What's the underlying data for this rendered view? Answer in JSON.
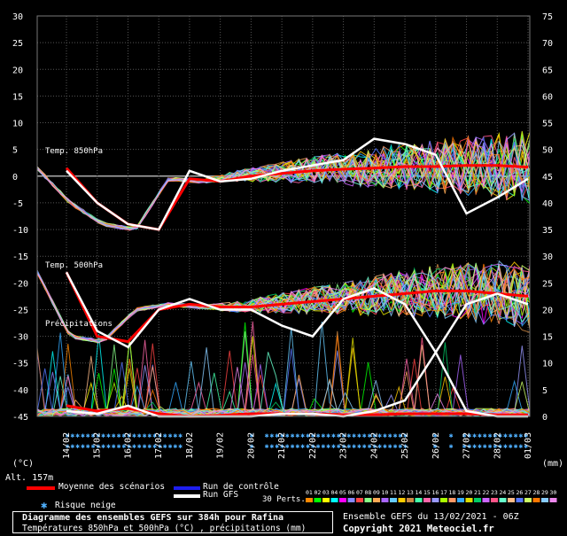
{
  "chart_data": {
    "type": "line",
    "left_axis": {
      "ticks": [
        30,
        25,
        20,
        15,
        10,
        5,
        0,
        -5,
        -10,
        -15,
        -20,
        -25,
        -30,
        -35,
        -40,
        -45
      ],
      "unit": "(°C)",
      "ylim": [
        -45,
        30
      ]
    },
    "right_axis": {
      "ticks": [
        75,
        70,
        65,
        60,
        55,
        50,
        45,
        40,
        35,
        30,
        25,
        20,
        15,
        10,
        5,
        0
      ],
      "unit": "(mm)",
      "ylim": [
        0,
        75
      ]
    },
    "altitude_label": "Alt. 157m",
    "x_ticks": [
      "14/02",
      "15/02",
      "16/02",
      "17/02",
      "18/02",
      "19/02",
      "20/02",
      "21/02",
      "22/02",
      "23/02",
      "24/02",
      "25/02",
      "26/02",
      "27/02",
      "28/02",
      "01/03"
    ],
    "grid": true,
    "panel_labels": {
      "t850": "Temp. 850hPa",
      "t500": "Temp. 500hPa",
      "precip": "Précipitations"
    },
    "series": [
      {
        "name": "Moyenne des scénarios",
        "color": "#ff0000",
        "t850": [
          1.5,
          -5,
          -9,
          -10,
          -0.5,
          -1,
          0,
          0.5,
          1,
          1.3,
          1.5,
          1.8,
          1.8,
          2,
          2,
          1.7
        ],
        "t500": [
          -18,
          -30,
          -31,
          -25,
          -24,
          -24.5,
          -24.5,
          -24,
          -23.5,
          -23,
          -22.5,
          -22,
          -21.5,
          -21.5,
          -22,
          -22.5
        ],
        "precip": [
          2,
          1,
          1.5,
          0.5,
          0,
          0.2,
          0.5,
          0.5,
          0.5,
          0.3,
          0.3,
          0.5,
          0.5,
          0.5,
          0.3,
          0.3
        ]
      },
      {
        "name": "Run GFS",
        "color": "#ffffff",
        "t850": [
          1,
          -5,
          -9,
          -10,
          1,
          -1,
          -0.5,
          1,
          2,
          3,
          7,
          6,
          4,
          -7,
          -4,
          -0.5
        ],
        "t500": [
          -18,
          -29,
          -32,
          -25,
          -23,
          -25,
          -25,
          -28,
          -30,
          -23,
          -21,
          -24,
          -33,
          -24,
          -22,
          -24
        ],
        "precip": [
          1,
          0.5,
          2,
          0,
          0,
          0,
          0,
          0.5,
          0.5,
          0,
          1,
          3,
          12,
          1,
          0,
          0
        ]
      }
    ]
  },
  "legend": {
    "mean": "Moyenne des scénarios",
    "control": "Run de contrôle",
    "gfs": "Run GFS",
    "snow": "Risque neige",
    "perts": "30 Perts.",
    "pert_numbers": [
      "01",
      "02",
      "03",
      "04",
      "05",
      "06",
      "07",
      "08",
      "09",
      "10",
      "11",
      "12",
      "13",
      "14",
      "15",
      "16",
      "17",
      "18",
      "19",
      "20",
      "21",
      "22",
      "23",
      "24",
      "25",
      "26",
      "27",
      "28",
      "29",
      "30"
    ],
    "colors": {
      "mean": "#ff0000",
      "control": "#1e1ef0",
      "gfs": "#ffffff",
      "snow": "#4fb0ff"
    }
  },
  "footer": {
    "title": "Diagramme des ensembles GEFS sur 384h pour Rafina",
    "subtitle": "Températures 850hPa et 500hPa (°C) , précipitations (mm)",
    "ensemble": "Ensemble GEFS du 13/02/2021 - 06Z",
    "copyright": "Copyright 2021 Meteociel.fr"
  }
}
